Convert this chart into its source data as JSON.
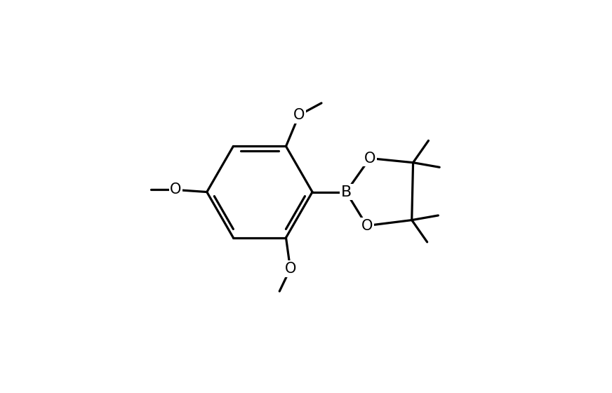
{
  "background_color": "#ffffff",
  "line_color": "#000000",
  "line_width": 2.3,
  "font_size": 15,
  "figsize": [
    8.72,
    5.6
  ],
  "dpi": 100,
  "xlim": [
    0,
    10
  ],
  "ylim": [
    0,
    7
  ]
}
